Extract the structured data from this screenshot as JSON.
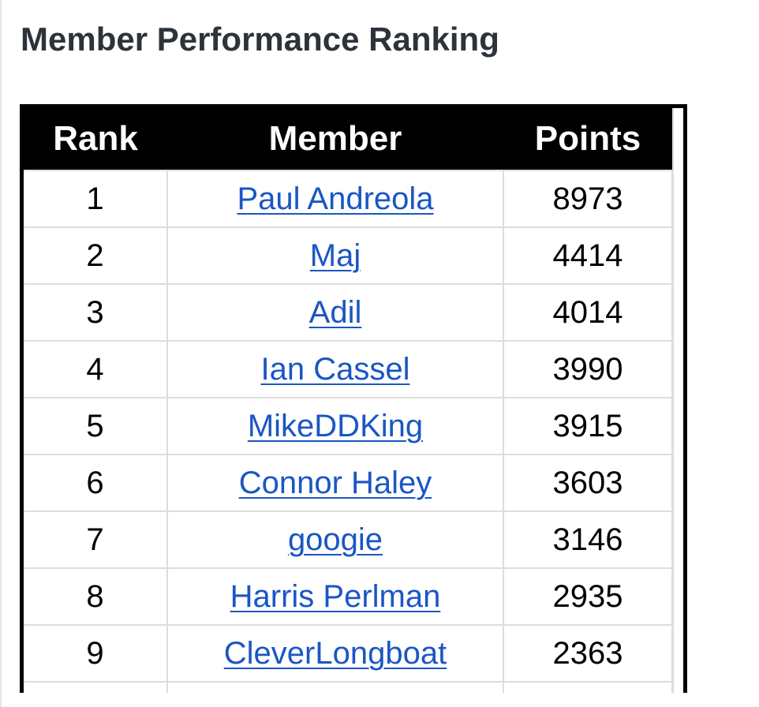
{
  "page": {
    "title": "Member Performance Ranking"
  },
  "table": {
    "headers": {
      "rank": "Rank",
      "member": "Member",
      "points": "Points"
    },
    "rows": [
      {
        "rank": "1",
        "member": "Paul Andreola",
        "points": "8973"
      },
      {
        "rank": "2",
        "member": "Maj",
        "points": "4414"
      },
      {
        "rank": "3",
        "member": "Adil",
        "points": "4014"
      },
      {
        "rank": "4",
        "member": "Ian Cassel",
        "points": "3990"
      },
      {
        "rank": "5",
        "member": "MikeDDKing",
        "points": "3915"
      },
      {
        "rank": "6",
        "member": "Connor Haley",
        "points": "3603"
      },
      {
        "rank": "7",
        "member": "googie",
        "points": "3146"
      },
      {
        "rank": "8",
        "member": "Harris Perlman",
        "points": "2935"
      },
      {
        "rank": "9",
        "member": "CleverLongboat",
        "points": "2363"
      }
    ]
  },
  "colors": {
    "title_text": "#2d333a",
    "header_background": "#000000",
    "header_text": "#ffffff",
    "link": "#1a56c4",
    "grid": "#dddddd"
  }
}
